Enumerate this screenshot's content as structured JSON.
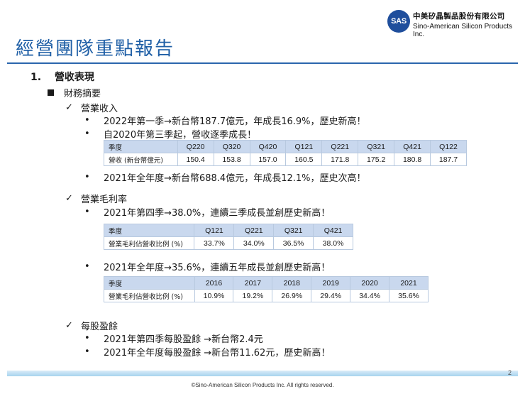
{
  "header": {
    "logo_text": "SAS",
    "company_zh": "中美矽晶製品股份有限公司",
    "company_en": "Sino-American Silicon Products Inc.",
    "brand_color": "#1f4e9c"
  },
  "title": "經營團隊重點報告",
  "section": {
    "number": "1.",
    "label": "營收表現"
  },
  "subsection": {
    "label": "財務摘要"
  },
  "revenue": {
    "heading": "營業收入",
    "bullets": [
      "2022年第一季→新台幣187.7億元，年成長16.9%，歷史新高！",
      "自2020年第三季起，營收逐季成長！",
      "2021年全年度→新台幣688.4億元，年成長12.1%，歷史次高！"
    ],
    "table": {
      "header_label": "季度",
      "row_label": "營收 (新台幣億元)",
      "quarters": [
        "Q220",
        "Q320",
        "Q420",
        "Q121",
        "Q221",
        "Q321",
        "Q421",
        "Q122"
      ],
      "values": [
        "150.4",
        "153.8",
        "157.0",
        "160.5",
        "171.8",
        "175.2",
        "180.8",
        "187.7"
      ]
    }
  },
  "gross_margin": {
    "heading": "營業毛利率",
    "bullets": [
      "2021年第四季→38.0%，連續三季成長並創歷史新高！",
      "2021年全年度→35.6%，連續五年成長並創歷史新高！"
    ],
    "quarter_table": {
      "header_label": "季度",
      "row_label": "營業毛利佔營收比例 (%)",
      "periods": [
        "Q121",
        "Q221",
        "Q321",
        "Q421"
      ],
      "values": [
        "33.7%",
        "34.0%",
        "36.5%",
        "38.0%"
      ]
    },
    "annual_table": {
      "header_label": "季度",
      "row_label": "營業毛利佔營收比例 (%)",
      "periods": [
        "2016",
        "2017",
        "2018",
        "2019",
        "2020",
        "2021"
      ],
      "values": [
        "10.9%",
        "19.2%",
        "26.9%",
        "29.4%",
        "34.4%",
        "35.6%"
      ]
    }
  },
  "eps": {
    "heading": "每股盈餘",
    "bullets": [
      "2021年第四季每股盈餘 →新台幣2.4元",
      "2021年全年度每股盈餘 →新台幣11.62元，歷史新高！"
    ]
  },
  "markers": {
    "square": "■",
    "check": "✓",
    "bullet": "•"
  },
  "footer": {
    "page_number": "2",
    "copyright": "©Sino-American Silicon Products Inc.  All rights reserved."
  },
  "colors": {
    "title": "#1f5fa6",
    "rule": "#2a66ad",
    "table_header": "#c9d8ee",
    "table_border": "#b8c9df"
  }
}
